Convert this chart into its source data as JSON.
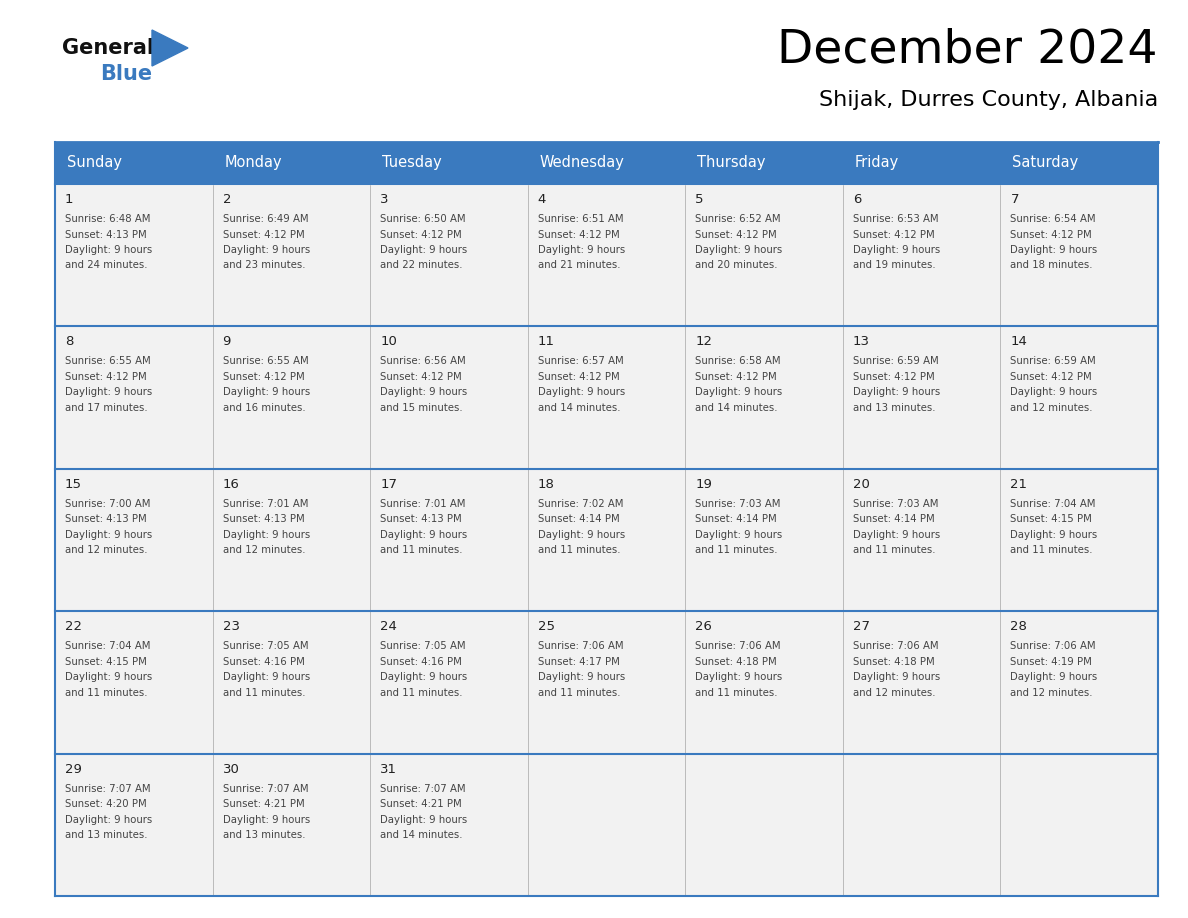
{
  "title": "December 2024",
  "subtitle": "Shijak, Durres County, Albania",
  "days_of_week": [
    "Sunday",
    "Monday",
    "Tuesday",
    "Wednesday",
    "Thursday",
    "Friday",
    "Saturday"
  ],
  "header_bg_color": "#3a7abf",
  "header_text_color": "#ffffff",
  "cell_bg_color": "#f2f2f2",
  "cell_border_color": "#3a7abf",
  "cell_line_color": "#cccccc",
  "title_color": "#000000",
  "subtitle_color": "#000000",
  "day_number_color": "#222222",
  "cell_text_color": "#444444",
  "fig_width": 11.88,
  "fig_height": 9.18,
  "calendar_data": [
    {
      "day": 1,
      "week": 0,
      "col": 0,
      "sunrise": "6:48 AM",
      "sunset": "4:13 PM",
      "daylight": "9 hours and 24 minutes."
    },
    {
      "day": 2,
      "week": 0,
      "col": 1,
      "sunrise": "6:49 AM",
      "sunset": "4:12 PM",
      "daylight": "9 hours and 23 minutes."
    },
    {
      "day": 3,
      "week": 0,
      "col": 2,
      "sunrise": "6:50 AM",
      "sunset": "4:12 PM",
      "daylight": "9 hours and 22 minutes."
    },
    {
      "day": 4,
      "week": 0,
      "col": 3,
      "sunrise": "6:51 AM",
      "sunset": "4:12 PM",
      "daylight": "9 hours and 21 minutes."
    },
    {
      "day": 5,
      "week": 0,
      "col": 4,
      "sunrise": "6:52 AM",
      "sunset": "4:12 PM",
      "daylight": "9 hours and 20 minutes."
    },
    {
      "day": 6,
      "week": 0,
      "col": 5,
      "sunrise": "6:53 AM",
      "sunset": "4:12 PM",
      "daylight": "9 hours and 19 minutes."
    },
    {
      "day": 7,
      "week": 0,
      "col": 6,
      "sunrise": "6:54 AM",
      "sunset": "4:12 PM",
      "daylight": "9 hours and 18 minutes."
    },
    {
      "day": 8,
      "week": 1,
      "col": 0,
      "sunrise": "6:55 AM",
      "sunset": "4:12 PM",
      "daylight": "9 hours and 17 minutes."
    },
    {
      "day": 9,
      "week": 1,
      "col": 1,
      "sunrise": "6:55 AM",
      "sunset": "4:12 PM",
      "daylight": "9 hours and 16 minutes."
    },
    {
      "day": 10,
      "week": 1,
      "col": 2,
      "sunrise": "6:56 AM",
      "sunset": "4:12 PM",
      "daylight": "9 hours and 15 minutes."
    },
    {
      "day": 11,
      "week": 1,
      "col": 3,
      "sunrise": "6:57 AM",
      "sunset": "4:12 PM",
      "daylight": "9 hours and 14 minutes."
    },
    {
      "day": 12,
      "week": 1,
      "col": 4,
      "sunrise": "6:58 AM",
      "sunset": "4:12 PM",
      "daylight": "9 hours and 14 minutes."
    },
    {
      "day": 13,
      "week": 1,
      "col": 5,
      "sunrise": "6:59 AM",
      "sunset": "4:12 PM",
      "daylight": "9 hours and 13 minutes."
    },
    {
      "day": 14,
      "week": 1,
      "col": 6,
      "sunrise": "6:59 AM",
      "sunset": "4:12 PM",
      "daylight": "9 hours and 12 minutes."
    },
    {
      "day": 15,
      "week": 2,
      "col": 0,
      "sunrise": "7:00 AM",
      "sunset": "4:13 PM",
      "daylight": "9 hours and 12 minutes."
    },
    {
      "day": 16,
      "week": 2,
      "col": 1,
      "sunrise": "7:01 AM",
      "sunset": "4:13 PM",
      "daylight": "9 hours and 12 minutes."
    },
    {
      "day": 17,
      "week": 2,
      "col": 2,
      "sunrise": "7:01 AM",
      "sunset": "4:13 PM",
      "daylight": "9 hours and 11 minutes."
    },
    {
      "day": 18,
      "week": 2,
      "col": 3,
      "sunrise": "7:02 AM",
      "sunset": "4:14 PM",
      "daylight": "9 hours and 11 minutes."
    },
    {
      "day": 19,
      "week": 2,
      "col": 4,
      "sunrise": "7:03 AM",
      "sunset": "4:14 PM",
      "daylight": "9 hours and 11 minutes."
    },
    {
      "day": 20,
      "week": 2,
      "col": 5,
      "sunrise": "7:03 AM",
      "sunset": "4:14 PM",
      "daylight": "9 hours and 11 minutes."
    },
    {
      "day": 21,
      "week": 2,
      "col": 6,
      "sunrise": "7:04 AM",
      "sunset": "4:15 PM",
      "daylight": "9 hours and 11 minutes."
    },
    {
      "day": 22,
      "week": 3,
      "col": 0,
      "sunrise": "7:04 AM",
      "sunset": "4:15 PM",
      "daylight": "9 hours and 11 minutes."
    },
    {
      "day": 23,
      "week": 3,
      "col": 1,
      "sunrise": "7:05 AM",
      "sunset": "4:16 PM",
      "daylight": "9 hours and 11 minutes."
    },
    {
      "day": 24,
      "week": 3,
      "col": 2,
      "sunrise": "7:05 AM",
      "sunset": "4:16 PM",
      "daylight": "9 hours and 11 minutes."
    },
    {
      "day": 25,
      "week": 3,
      "col": 3,
      "sunrise": "7:06 AM",
      "sunset": "4:17 PM",
      "daylight": "9 hours and 11 minutes."
    },
    {
      "day": 26,
      "week": 3,
      "col": 4,
      "sunrise": "7:06 AM",
      "sunset": "4:18 PM",
      "daylight": "9 hours and 11 minutes."
    },
    {
      "day": 27,
      "week": 3,
      "col": 5,
      "sunrise": "7:06 AM",
      "sunset": "4:18 PM",
      "daylight": "9 hours and 12 minutes."
    },
    {
      "day": 28,
      "week": 3,
      "col": 6,
      "sunrise": "7:06 AM",
      "sunset": "4:19 PM",
      "daylight": "9 hours and 12 minutes."
    },
    {
      "day": 29,
      "week": 4,
      "col": 0,
      "sunrise": "7:07 AM",
      "sunset": "4:20 PM",
      "daylight": "9 hours and 13 minutes."
    },
    {
      "day": 30,
      "week": 4,
      "col": 1,
      "sunrise": "7:07 AM",
      "sunset": "4:21 PM",
      "daylight": "9 hours and 13 minutes."
    },
    {
      "day": 31,
      "week": 4,
      "col": 2,
      "sunrise": "7:07 AM",
      "sunset": "4:21 PM",
      "daylight": "9 hours and 14 minutes."
    }
  ]
}
